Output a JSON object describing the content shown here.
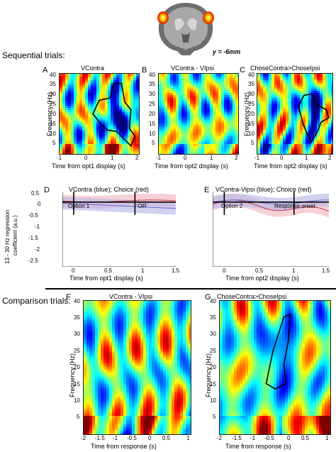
{
  "brain": {
    "coord_label": "y = -6mm"
  },
  "sections": {
    "sequential": "Sequential trials:",
    "comparison": "Comparison trials:"
  },
  "panels": {
    "A": {
      "letter": "A",
      "title": "VContra",
      "xlabel": "Time from opt1 display (s)",
      "xticks": [
        "-1",
        "0",
        "1",
        "2"
      ]
    },
    "B": {
      "letter": "B",
      "title": "VContra - VIpsi",
      "xlabel": "Time from opt2 display (s)",
      "xticks": [
        "-1",
        "0",
        "1",
        "2"
      ]
    },
    "C": {
      "letter": "C",
      "title": "ChoseContra>ChoseIpsi",
      "xlabel": "Time from opt2 display (s)",
      "xticks": [
        "-1",
        "0",
        "1",
        "2"
      ]
    },
    "D": {
      "letter": "D",
      "title": "VContra (blue); Choice (red)",
      "xlabel": "Time from opt1 display (s)",
      "ann1": "Option 1",
      "ann2": "'OR'",
      "xticks": [
        "0",
        "0.5",
        "1",
        "1.5"
      ]
    },
    "E": {
      "letter": "E",
      "title": "VContra-Vipsi (blue); Choice (red)",
      "xlabel": "Time from opt2 display (s)",
      "ann1": "Option 2",
      "ann2": "Response onset",
      "xticks": [
        "0",
        "0.5",
        "1",
        "1.5"
      ]
    },
    "F": {
      "letter": "F",
      "title": "VContra - VIpsi",
      "xlabel": "Time from response (s)",
      "xticks": [
        "-2",
        "-1.5",
        "-1",
        "-0.5",
        "0",
        "0.5",
        "1"
      ]
    },
    "G": {
      "letter": "G",
      "title": "ChoseContra>ChoseIpsi",
      "xlabel": "Time from response (s)",
      "xticks": [
        "-2",
        "-1.5",
        "-1",
        "-0.5",
        "0",
        "0.5",
        "1"
      ]
    }
  },
  "freq_label": "Frequency (Hz)",
  "freq_ticks_top": [
    "40",
    "35",
    "30",
    "25",
    "20",
    "15",
    "10",
    "5"
  ],
  "reg_ylabel_1": "13 - 30 Hz regression",
  "reg_ylabel_2": "coefficient (a.u.)",
  "reg_yticks": [
    "0.5",
    "0",
    "-0.5",
    "-1",
    "-1.5",
    "-2",
    "-2.5"
  ],
  "colors": {
    "blue": "#6a6acc",
    "red": "#cc3344",
    "blue_fill": "#b9b9e8",
    "red_fill": "#f2b8c0"
  }
}
